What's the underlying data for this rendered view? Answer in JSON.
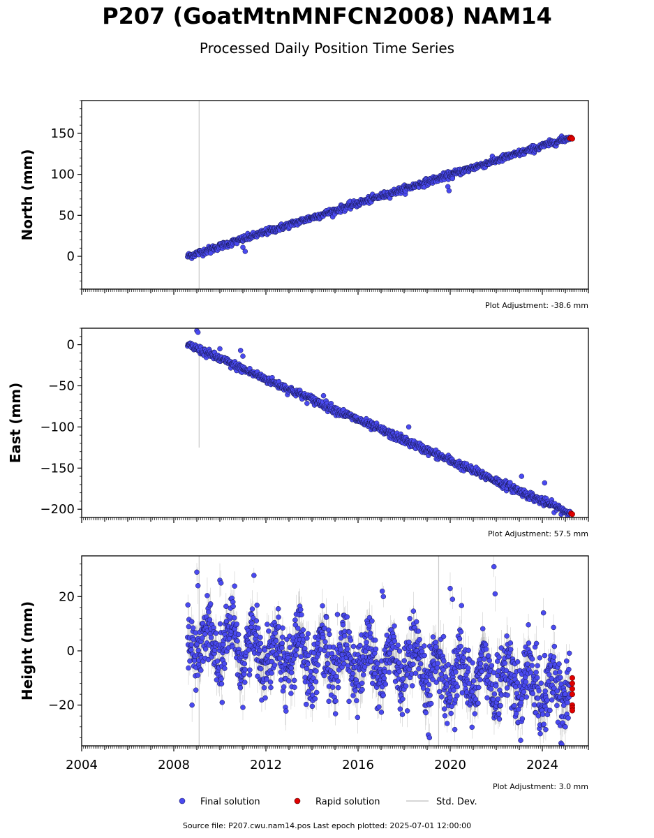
{
  "header": {
    "title": "P207 (GoatMtnMNFCN2008) NAM14",
    "subtitle": "Processed Daily Position Time Series"
  },
  "footer": {
    "source": "Source file: P207.cwu.nam14.pos  Last epoch plotted: 2025-07-01 12:00:00"
  },
  "legend": {
    "final": "Final solution",
    "rapid": "Rapid solution",
    "std": "Std. Dev."
  },
  "colors": {
    "final": "#4a4af0",
    "rapid": "#e00000",
    "std": "#c8c8c8",
    "std_dark": "#777777"
  },
  "chart_data": [
    {
      "type": "scatter",
      "ylabel": "North (mm)",
      "adjustment": "Plot Adjustment: -38.6 mm",
      "xlim": [
        2004.0,
        2026.0
      ],
      "ylim": [
        -40,
        190
      ],
      "yticks": [
        0,
        50,
        100,
        150
      ],
      "trend": [
        [
          2008.6,
          0
        ],
        [
          2025.2,
          145
        ]
      ],
      "final_start": 2008.6,
      "final_end": 2025.2,
      "noise": 2.0,
      "outliers": [
        [
          2009.6,
          4
        ],
        [
          2011.0,
          11
        ],
        [
          2011.1,
          6
        ],
        [
          2019.9,
          85
        ],
        [
          2019.95,
          80
        ],
        [
          2020.1,
          95
        ]
      ],
      "rapid": [
        [
          2025.2,
          144
        ],
        [
          2025.25,
          145
        ],
        [
          2025.3,
          143.5
        ]
      ],
      "std_spike": {
        "x": 2009.1,
        "y0": 190,
        "y1": -40
      }
    },
    {
      "type": "scatter",
      "ylabel": "East (mm)",
      "adjustment": "Plot Adjustment: 57.5 mm",
      "xlim": [
        2004.0,
        2026.0
      ],
      "ylim": [
        -210,
        20
      ],
      "yticks": [
        -200,
        -150,
        -100,
        -50,
        0
      ],
      "trend": [
        [
          2008.6,
          0
        ],
        [
          2025.2,
          -205
        ]
      ],
      "final_start": 2008.6,
      "final_end": 2025.2,
      "noise": 2.5,
      "outliers": [
        [
          2009.0,
          17
        ],
        [
          2009.05,
          15
        ],
        [
          2010.0,
          -5
        ],
        [
          2010.9,
          -7
        ],
        [
          2011.0,
          -14
        ],
        [
          2014.5,
          -62
        ],
        [
          2018.2,
          -100
        ],
        [
          2023.1,
          -160
        ],
        [
          2024.1,
          -168
        ]
      ],
      "rapid": [
        [
          2025.25,
          -205
        ],
        [
          2025.3,
          -206
        ]
      ],
      "std_spike": {
        "x": 2009.1,
        "y0": 0,
        "y1": -125
      }
    },
    {
      "type": "scatter",
      "ylabel": "Height (mm)",
      "adjustment": "Plot Adjustment: 3.0 mm",
      "xlim": [
        2004.0,
        2026.0
      ],
      "ylim": [
        -35,
        35
      ],
      "yticks": [
        -20,
        0,
        20
      ],
      "xticks": [
        2004,
        2008,
        2012,
        2016,
        2020,
        2024
      ],
      "trend": [
        [
          2008.6,
          4
        ],
        [
          2025.2,
          -14
        ]
      ],
      "final_start": 2008.6,
      "final_end": 2025.2,
      "noise": 6.0,
      "seasonal_amplitude": 7.0,
      "outliers": [
        [
          2009.0,
          29
        ],
        [
          2009.05,
          24
        ],
        [
          2010.0,
          26
        ],
        [
          2010.05,
          25
        ],
        [
          2010.1,
          -19
        ],
        [
          2017.05,
          22
        ],
        [
          2017.1,
          20
        ],
        [
          2019.1,
          -32
        ],
        [
          2020.0,
          23
        ],
        [
          2020.1,
          19
        ],
        [
          2020.2,
          -29
        ],
        [
          2021.9,
          31
        ],
        [
          2021.95,
          21
        ],
        [
          2024.05,
          14
        ],
        [
          2024.15,
          -29
        ],
        [
          2025.0,
          -28
        ]
      ],
      "rapid": [
        [
          2025.3,
          -10
        ],
        [
          2025.3,
          -12
        ],
        [
          2025.3,
          -14
        ],
        [
          2025.3,
          -16
        ],
        [
          2025.3,
          -20
        ],
        [
          2025.3,
          -21
        ],
        [
          2025.3,
          -22
        ]
      ],
      "std_spike": {
        "x": 2009.1,
        "y0": 35,
        "y1": -35
      },
      "std_spike2": {
        "x": 2019.5,
        "y0": 35,
        "y1": -35
      }
    }
  ]
}
